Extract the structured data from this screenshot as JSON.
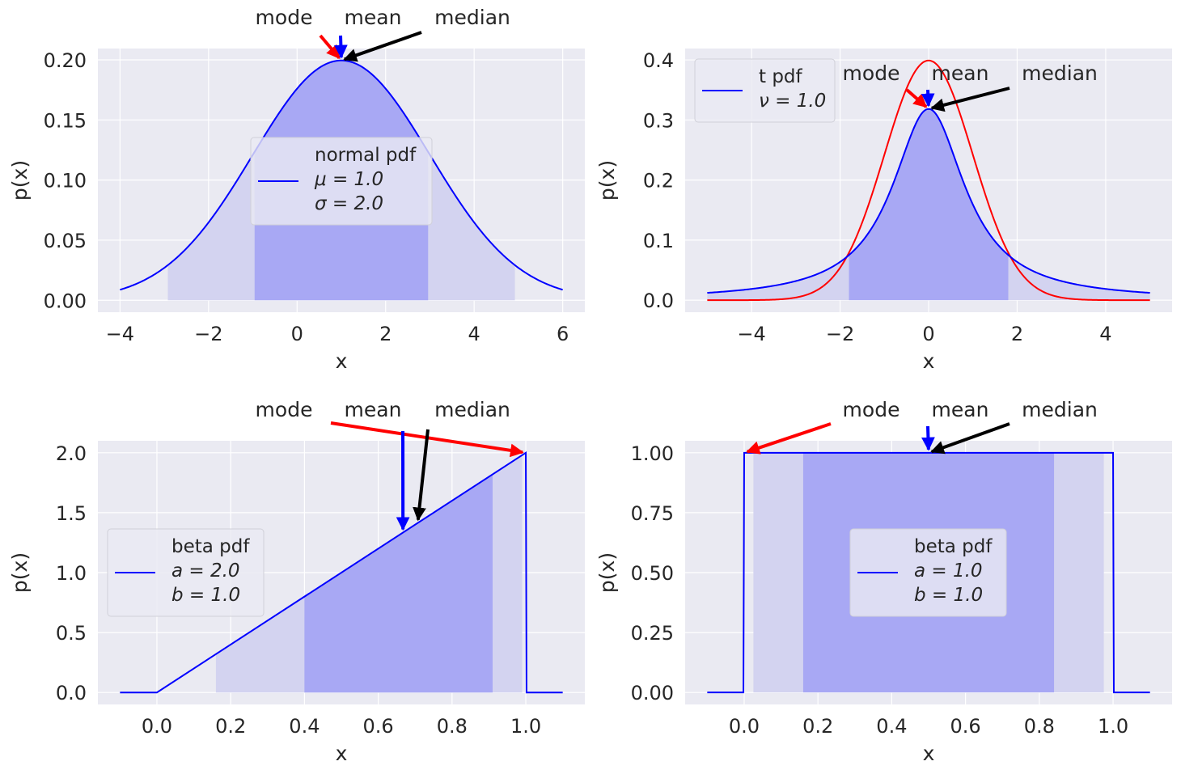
{
  "figure": {
    "background": "#ffffff",
    "axes_facecolor": "#eaeaf2",
    "grid_color": "#ffffff",
    "text_color": "#262626",
    "line_color": "#0000ff",
    "fill_color_light": "#d3d3f0",
    "fill_color_dark": "#a8a8f4",
    "arrow_colors": {
      "mode": "#ff0000",
      "mean": "#0000ff",
      "median": "#000000"
    }
  },
  "chart_data": [
    {
      "id": "normal",
      "type": "line",
      "dist": "normal",
      "params": {
        "mu": 1.0,
        "sigma": 2.0
      },
      "x_range": [
        -4,
        6
      ],
      "xlim": [
        -4.5,
        6.5
      ],
      "ylim": [
        -0.0099,
        0.2094
      ],
      "xticks": [
        -4,
        -2,
        0,
        2,
        4,
        6
      ],
      "xtick_labels": [
        "−4",
        "−2",
        "0",
        "2",
        "4",
        "6"
      ],
      "yticks": [
        0.0,
        0.05,
        0.1,
        0.15,
        0.2
      ],
      "ytick_labels": [
        "0.00",
        "0.05",
        "0.10",
        "0.15",
        "0.20"
      ],
      "xlabel": "x",
      "ylabel": "p(x)",
      "shaded_outer": [
        -2.92,
        4.92
      ],
      "shaded_inner": [
        -0.96,
        2.96
      ],
      "legend": {
        "title": "normal pdf",
        "lines": [
          "μ = 1.0",
          "σ = 2.0"
        ],
        "placement": "center"
      },
      "annotations": {
        "mode": 1.0,
        "mean": 1.0,
        "median": 1.0
      },
      "annotation_labels": [
        "mode",
        "mean",
        "median"
      ]
    },
    {
      "id": "t",
      "type": "line",
      "dist": "t",
      "params": {
        "nu": 1.0
      },
      "x_range": [
        -5,
        5
      ],
      "xlim": [
        -5.5,
        5.5
      ],
      "ylim": [
        -0.02,
        0.4189
      ],
      "xticks": [
        -4,
        -2,
        0,
        2,
        4
      ],
      "xtick_labels": [
        "−4",
        "−2",
        "0",
        "2",
        "4"
      ],
      "yticks": [
        0.0,
        0.1,
        0.2,
        0.3,
        0.4
      ],
      "ytick_labels": [
        "0.0",
        "0.1",
        "0.2",
        "0.3",
        "0.4"
      ],
      "xlabel": "x",
      "ylabel": "p(x)",
      "reference_curve": {
        "dist": "normal",
        "params": {
          "mu": 0.0,
          "sigma": 1.0
        },
        "color": "#ff0000"
      },
      "shaded_outer": [
        -5,
        5
      ],
      "shaded_inner": [
        -1.8,
        1.8
      ],
      "legend": {
        "title": "t pdf",
        "lines": [
          "ν = 1.0"
        ],
        "placement": "upper left"
      },
      "annotations": {
        "mode": 0.0,
        "mean": 0.0,
        "median": 0.0
      },
      "annotation_labels": [
        "mode",
        "mean",
        "median"
      ]
    },
    {
      "id": "beta21",
      "type": "line",
      "dist": "beta",
      "params": {
        "a": 2.0,
        "b": 1.0
      },
      "x_range": [
        -0.1,
        1.1
      ],
      "xlim": [
        -0.16,
        1.16
      ],
      "ylim": [
        -0.0999,
        2.0999
      ],
      "xticks": [
        0.0,
        0.2,
        0.4,
        0.6,
        0.8,
        1.0
      ],
      "xtick_labels": [
        "0.0",
        "0.2",
        "0.4",
        "0.6",
        "0.8",
        "1.0"
      ],
      "yticks": [
        0.0,
        0.5,
        1.0,
        1.5,
        2.0
      ],
      "ytick_labels": [
        "0.0",
        "0.5",
        "1.0",
        "1.5",
        "2.0"
      ],
      "xlabel": "x",
      "ylabel": "p(x)",
      "shaded_outer": [
        0.16,
        0.99
      ],
      "shaded_inner": [
        0.4,
        0.91
      ],
      "legend": {
        "title": "beta pdf",
        "lines": [
          "a = 2.0",
          "b = 1.0"
        ],
        "placement": "center left"
      },
      "annotations": {
        "mode": 1.0,
        "mean": 0.667,
        "median": 0.707
      },
      "annotation_labels": [
        "mode",
        "mean",
        "median"
      ]
    },
    {
      "id": "beta11",
      "type": "line",
      "dist": "beta",
      "params": {
        "a": 1.0,
        "b": 1.0
      },
      "x_range": [
        -0.1,
        1.1
      ],
      "xlim": [
        -0.16,
        1.16
      ],
      "ylim": [
        -0.05,
        1.05
      ],
      "xticks": [
        0.0,
        0.2,
        0.4,
        0.6,
        0.8,
        1.0
      ],
      "xtick_labels": [
        "0.0",
        "0.2",
        "0.4",
        "0.6",
        "0.8",
        "1.0"
      ],
      "yticks": [
        0.0,
        0.25,
        0.5,
        0.75,
        1.0
      ],
      "ytick_labels": [
        "0.00",
        "0.25",
        "0.50",
        "0.75",
        "1.00"
      ],
      "xlabel": "x",
      "ylabel": "p(x)",
      "shaded_outer": [
        0.025,
        0.975
      ],
      "shaded_inner": [
        0.16,
        0.84
      ],
      "legend": {
        "title": "beta pdf",
        "lines": [
          "a = 1.0",
          "b = 1.0"
        ],
        "placement": "center"
      },
      "annotations": {
        "mode": 0.0,
        "mean": 0.5,
        "median": 0.5
      },
      "annotation_labels": [
        "mode",
        "mean",
        "median"
      ]
    }
  ]
}
